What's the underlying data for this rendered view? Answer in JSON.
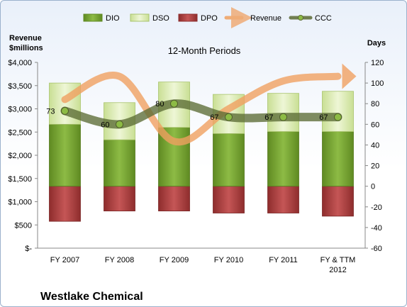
{
  "chart_data": {
    "type": "bar",
    "title": "12-Month Periods",
    "company": "Westlake Chemical",
    "left_axis_label": [
      "Revenue",
      "$millions"
    ],
    "right_axis_label": "Days",
    "categories": [
      "FY 2007",
      "FY 2008",
      "FY 2009",
      "FY 2010",
      "FY 2011",
      "FY & TTM 2012"
    ],
    "legend": [
      "DIO",
      "DSO",
      "DPO",
      "Revenue",
      "CCC"
    ],
    "left_ticks": [
      "$-",
      "$500",
      "$1,000",
      "$1,500",
      "$2,000",
      "$2,500",
      "$3,000",
      "$3,500",
      "$4,000"
    ],
    "right_ticks": [
      "-60",
      "-40",
      "-20",
      "0",
      "20",
      "40",
      "60",
      "80",
      "100",
      "120"
    ],
    "ylim_revenue": [
      0,
      4000
    ],
    "ylim_days": [
      -60,
      120
    ],
    "series": [
      {
        "name": "DIO",
        "type": "stacked-bar",
        "axis": "days",
        "color": "#7fa83a",
        "values": [
          60,
          45,
          57,
          51,
          53,
          53
        ]
      },
      {
        "name": "DSO",
        "type": "stacked-bar",
        "axis": "days",
        "color": "#dcebb3",
        "values": [
          40,
          36,
          44,
          38,
          37,
          39
        ]
      },
      {
        "name": "DPO",
        "type": "stacked-bar",
        "axis": "days",
        "color": "#b74545",
        "values": [
          -34,
          -24,
          -24,
          -26,
          -26,
          -29
        ]
      },
      {
        "name": "Revenue",
        "type": "line",
        "axis": "revenue",
        "color": "#f0a060",
        "values": [
          3200,
          3700,
          2300,
          3000,
          3600,
          3700
        ]
      },
      {
        "name": "CCC",
        "type": "line",
        "axis": "days",
        "color": "#5b6b34",
        "values": [
          73,
          60,
          80,
          67,
          67,
          67
        ]
      }
    ],
    "ccc_labels": [
      "73",
      "60",
      "80",
      "67",
      "67",
      "67"
    ],
    "grid": false,
    "legend_position": "top"
  }
}
